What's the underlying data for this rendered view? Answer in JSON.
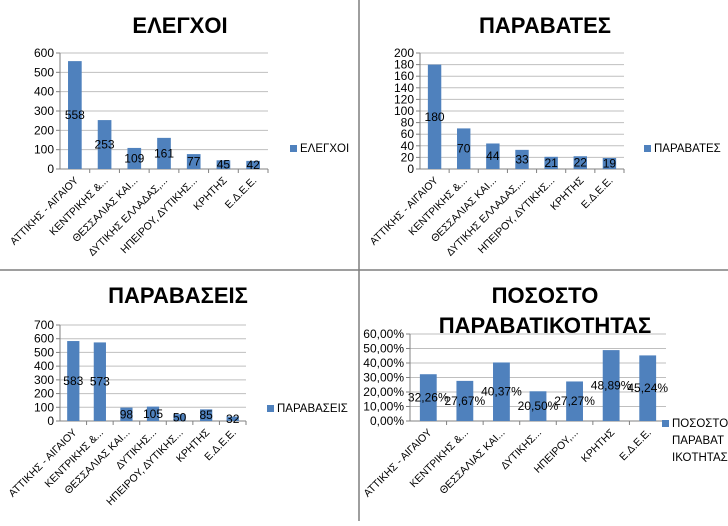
{
  "colors": {
    "bar": "#4f81bd",
    "grid": "#bfbfbf",
    "axis": "#808080",
    "text": "#000000",
    "border": "#7f7f7f"
  },
  "chart_data": [
    {
      "type": "bar",
      "title": "ΕΛΕΓΧΟΙ",
      "categories": [
        "ΑΤΤΙΚΗΣ - ΑΙΓΑΙΟΥ",
        "ΚΕΝΤΡΙΚΗΣ &...",
        "ΘΕΣΣΑΛΙΑΣ ΚΑΙ...",
        "ΔΥΤΙΚΗΣ ΕΛΛΑΔΑΣ,...",
        "ΗΠΕΙΡΟΥ, ΔΥΤΙΚΗΣ...",
        "ΚΡΗΤΗΣ",
        "Ε.Δ.Ε.Ε."
      ],
      "values": [
        558,
        253,
        109,
        161,
        77,
        45,
        42
      ],
      "data_labels": [
        "558",
        "253",
        "109",
        "161",
        "77",
        "45",
        "42"
      ],
      "yticks": [
        "0",
        "100",
        "200",
        "300",
        "400",
        "500",
        "600"
      ],
      "ylim": [
        0,
        600
      ],
      "legend": "ΕΛΕΓΧΟΙ",
      "grid": true
    },
    {
      "type": "bar",
      "title": "ΠΑΡΑΒΑΤΕΣ",
      "categories": [
        "ΑΤΤΙΚΗΣ - ΑΙΓΑΙΟΥ",
        "ΚΕΝΤΡΙΚΗΣ &...",
        "ΘΕΣΣΑΛΙΑΣ ΚΑΙ...",
        "ΔΥΤΙΚΗΣ ΕΛΛΑΔΑΣ,...",
        "ΗΠΕΙΡΟΥ, ΔΥΤΙΚΗΣ...",
        "ΚΡΗΤΗΣ",
        "Ε.Δ.Ε.Ε."
      ],
      "values": [
        180,
        70,
        44,
        33,
        21,
        22,
        19
      ],
      "data_labels": [
        "180",
        "70",
        "44",
        "33",
        "21",
        "22",
        "19"
      ],
      "yticks": [
        "0",
        "20",
        "40",
        "60",
        "80",
        "100",
        "120",
        "140",
        "160",
        "180",
        "200"
      ],
      "ylim": [
        0,
        200
      ],
      "legend": "ΠΑΡΑΒΑΤΕΣ",
      "grid": true
    },
    {
      "type": "bar",
      "title": "ΠΑΡΑΒΑΣΕΙΣ",
      "categories": [
        "ΑΤΤΙΚΗΣ - ΑΙΓΑΙΟΥ",
        "ΚΕΝΤΡΙΚΗΣ &...",
        "ΘΕΣΣΑΛΙΑΣ ΚΑΙ...",
        "ΔΥΤΙΚΗΣ...",
        "ΗΠΕΙΡΟΥ, ΔΥΤΙΚΗΣ...",
        "ΚΡΗΤΗΣ",
        "Ε.Δ.Ε.Ε."
      ],
      "values": [
        583,
        573,
        98,
        105,
        50,
        85,
        32
      ],
      "data_labels": [
        "583",
        "573",
        "98",
        "105",
        "50",
        "85",
        "32"
      ],
      "yticks": [
        "0",
        "100",
        "200",
        "300",
        "400",
        "500",
        "600",
        "700"
      ],
      "ylim": [
        0,
        700
      ],
      "legend": "ΠΑΡΑΒΑΣΕΙΣ",
      "grid": true
    },
    {
      "type": "bar",
      "title": "ΠΟΣΟΣΤΟ ΠΑΡΑΒΑΤΙΚΟΤΗΤΑΣ",
      "categories": [
        "ΑΤΤΙΚΗΣ - ΑΙΓΑΙΟΥ",
        "ΚΕΝΤΡΙΚΗΣ &...",
        "ΘΕΣΣΑΛΙΑΣ ΚΑΙ...",
        "ΔΥΤΙΚΗΣ...",
        "ΗΠΕΙΡΟΥ,...",
        "ΚΡΗΤΗΣ",
        "Ε.Δ.Ε.Ε."
      ],
      "values": [
        32.26,
        27.67,
        40.37,
        20.5,
        27.27,
        48.89,
        45.24
      ],
      "data_labels": [
        "32,26%",
        "27,67%",
        "40,37%",
        "20,50%",
        "27,27%",
        "48,89%",
        "45,24%"
      ],
      "yticks": [
        "0,00%",
        "10,00%",
        "20,00%",
        "30,00%",
        "40,00%",
        "50,00%",
        "60,00%"
      ],
      "ylim": [
        0,
        60
      ],
      "legend": "ΠΟΣΟΣΤΟ ΠΑΡΑΒΑΤΙΚΟΤΗΤΑΣ",
      "grid": true
    }
  ]
}
